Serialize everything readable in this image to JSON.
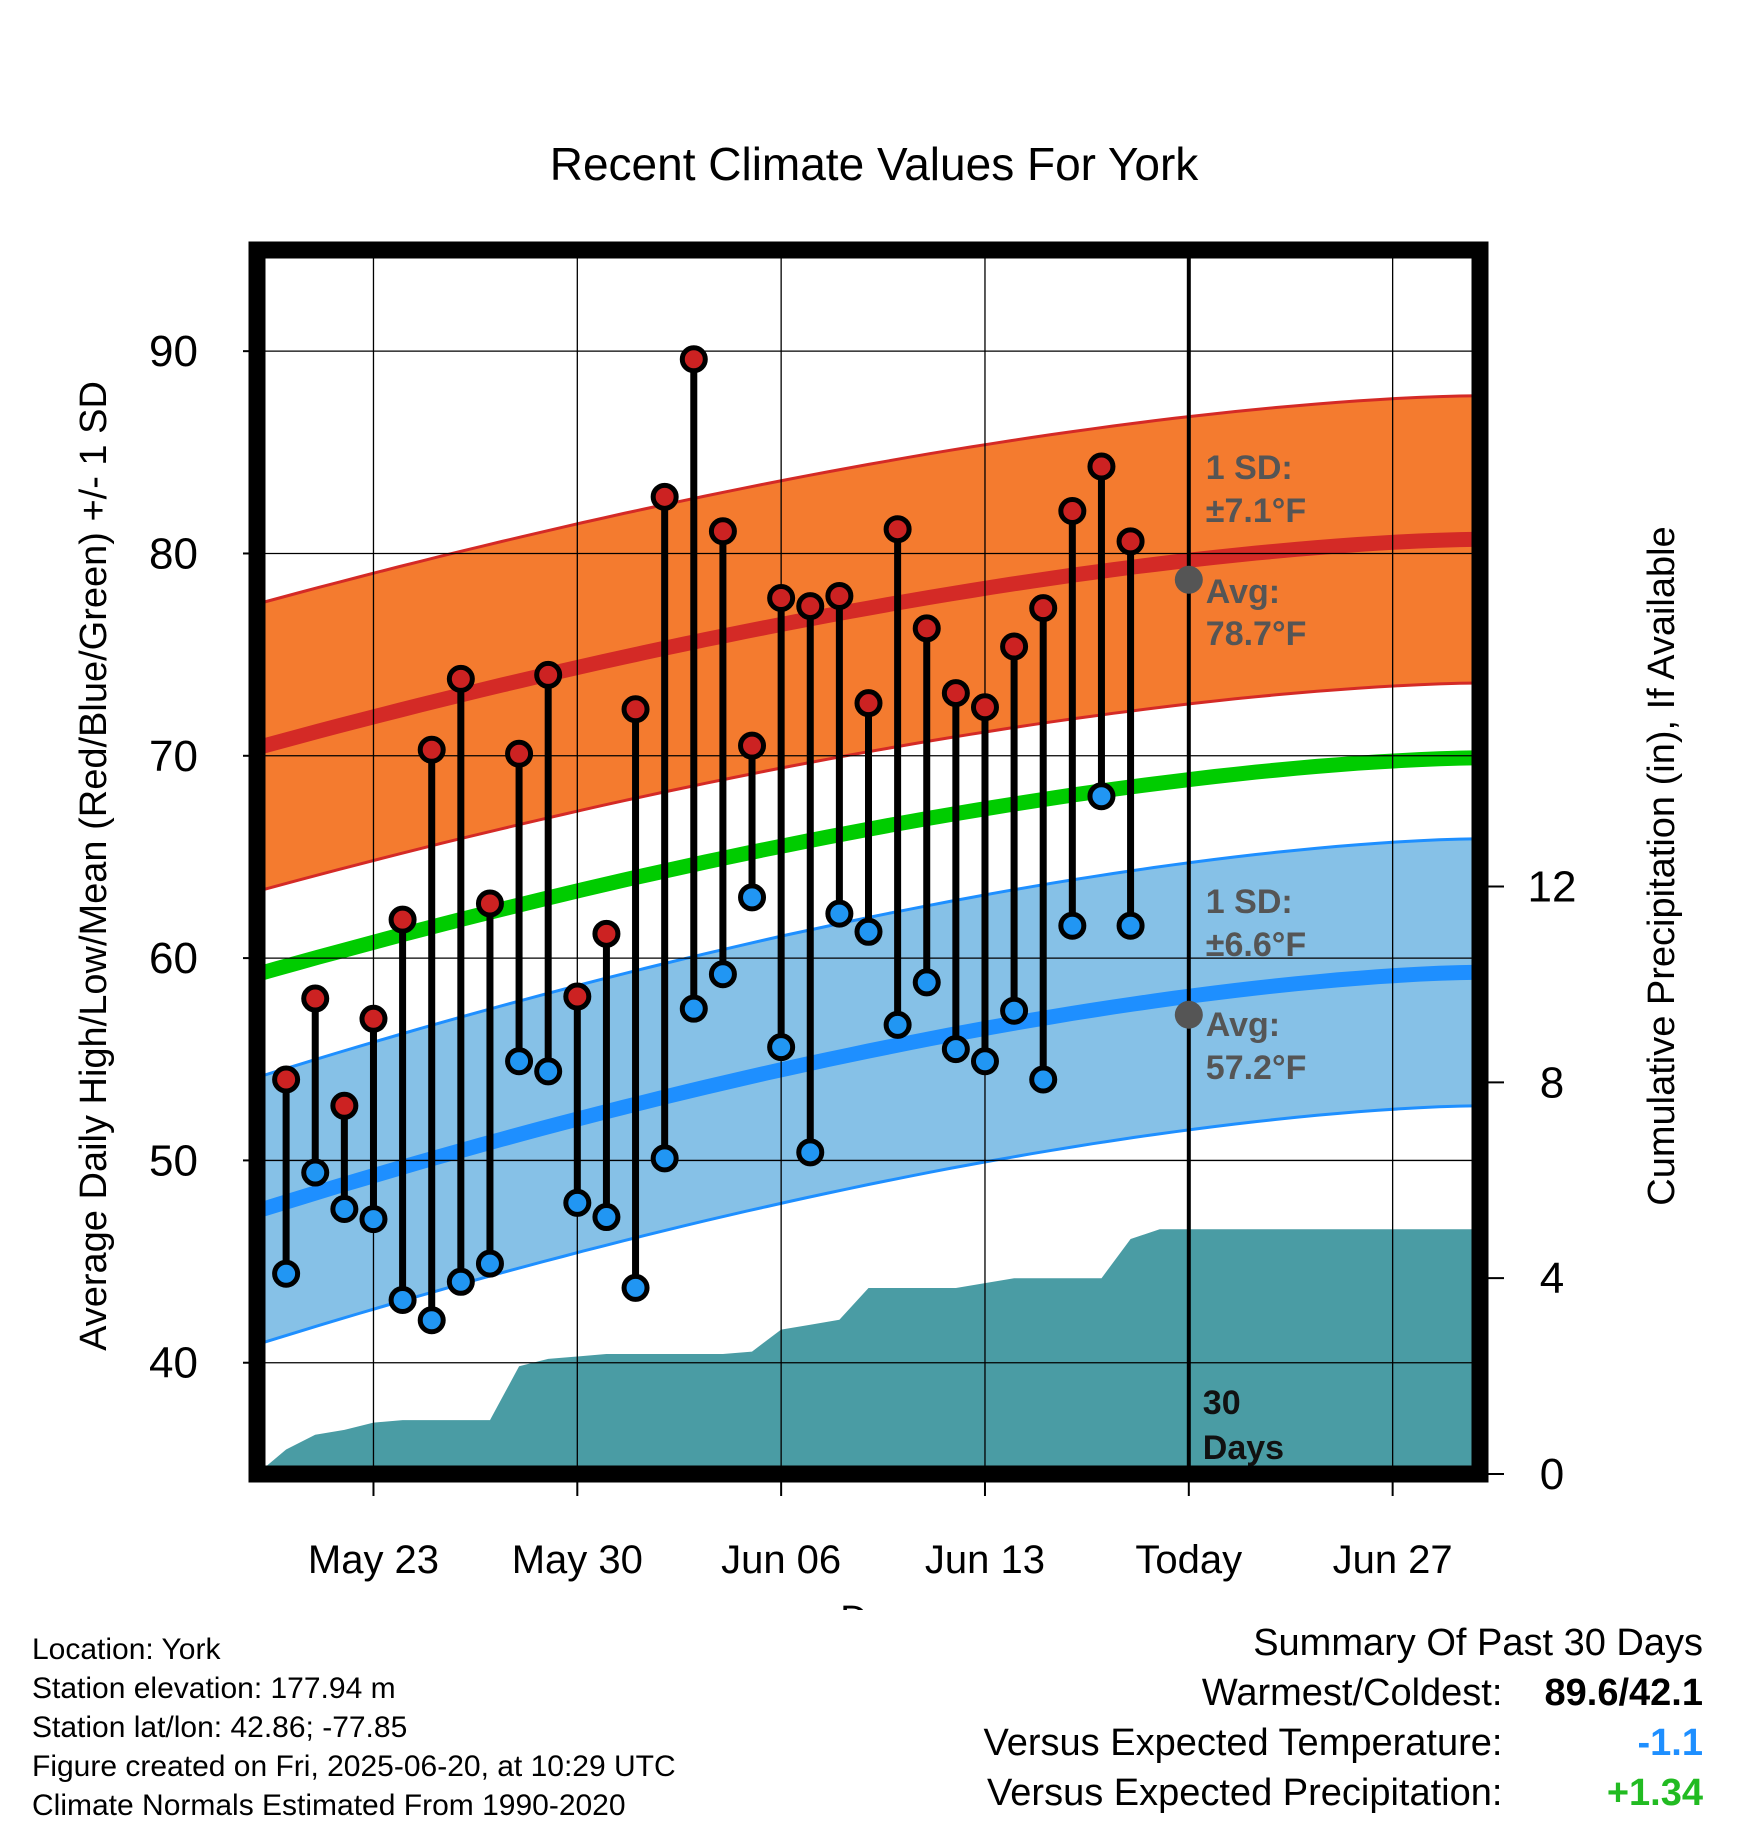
{
  "chart_data": {
    "type": "line",
    "title": "Recent Climate Values For York",
    "xlabel": "Day",
    "ylabel": "Average Daily High/Low/Mean (Red/Blue/Green) +/- 1 SD",
    "y2label": "Cumulative Precipitation (in), If Available",
    "ylim": [
      34.5,
      95
    ],
    "y2lim": [
      0,
      25
    ],
    "xlim": [
      "2025-05-19",
      "2025-06-30"
    ],
    "yticks": [
      "40",
      "50",
      "60",
      "70",
      "80",
      "90"
    ],
    "y2ticks": [
      "0",
      "4",
      "8",
      "12"
    ],
    "xticks": [
      {
        "date": "2025-05-23",
        "label": "May 23"
      },
      {
        "date": "2025-05-30",
        "label": "May 30"
      },
      {
        "date": "2025-06-06",
        "label": "Jun 06"
      },
      {
        "date": "2025-06-13",
        "label": "Jun 13"
      },
      {
        "date": "2025-06-20",
        "label": "Today"
      },
      {
        "date": "2025-06-27",
        "label": "Jun 27"
      }
    ],
    "grid": true,
    "dates": [
      "2025-05-20",
      "2025-05-21",
      "2025-05-22",
      "2025-05-23",
      "2025-05-24",
      "2025-05-25",
      "2025-05-26",
      "2025-05-27",
      "2025-05-28",
      "2025-05-29",
      "2025-05-30",
      "2025-05-31",
      "2025-06-01",
      "2025-06-02",
      "2025-06-03",
      "2025-06-04",
      "2025-06-05",
      "2025-06-06",
      "2025-06-07",
      "2025-06-08",
      "2025-06-09",
      "2025-06-10",
      "2025-06-11",
      "2025-06-12",
      "2025-06-13",
      "2025-06-14",
      "2025-06-15",
      "2025-06-16",
      "2025-06-17",
      "2025-06-18",
      "2025-06-19"
    ],
    "daily_high": [
      54.0,
      58.0,
      52.7,
      57.0,
      61.9,
      70.3,
      73.8,
      62.7,
      70.1,
      74.0,
      58.1,
      61.2,
      72.3,
      82.8,
      89.6,
      81.1,
      70.5,
      77.8,
      77.4,
      77.9,
      72.6,
      81.2,
      76.3,
      73.1,
      72.4,
      75.4,
      77.3,
      82.1,
      84.3,
      80.6,
      null
    ],
    "daily_low": [
      44.4,
      49.4,
      47.6,
      47.1,
      43.1,
      42.1,
      44.0,
      44.9,
      54.9,
      54.4,
      47.9,
      47.2,
      43.7,
      50.1,
      57.5,
      59.2,
      63.0,
      55.6,
      50.4,
      62.2,
      61.3,
      56.7,
      58.8,
      55.5,
      54.9,
      57.4,
      54.0,
      61.6,
      68.0,
      61.6,
      null
    ],
    "normal_high": {
      "name": "Avg",
      "start": 70.4,
      "today": 78.7,
      "end": 80.7
    },
    "normal_low": {
      "name": "Avg",
      "start": 47.5,
      "today": 57.2,
      "end": 59.3
    },
    "normal_mean": {
      "start": 59.2,
      "end": 69.9
    },
    "sd_high": 7.1,
    "sd_low": 6.6,
    "cumulative_precip_dates": [
      "2025-05-19",
      "2025-05-20",
      "2025-05-21",
      "2025-05-22",
      "2025-05-23",
      "2025-05-24",
      "2025-05-25",
      "2025-05-26",
      "2025-05-27",
      "2025-05-28",
      "2025-05-29",
      "2025-05-30",
      "2025-05-31",
      "2025-06-01",
      "2025-06-02",
      "2025-06-03",
      "2025-06-04",
      "2025-06-05",
      "2025-06-06",
      "2025-06-07",
      "2025-06-08",
      "2025-06-09",
      "2025-06-10",
      "2025-06-11",
      "2025-06-12",
      "2025-06-13",
      "2025-06-14",
      "2025-06-15",
      "2025-06-16",
      "2025-06-17",
      "2025-06-18",
      "2025-06-19",
      "2025-06-20",
      "2025-06-30"
    ],
    "cumulative_precip": [
      0.0,
      0.5,
      0.8,
      0.9,
      1.05,
      1.1,
      1.1,
      1.1,
      1.1,
      2.2,
      2.35,
      2.4,
      2.45,
      2.45,
      2.45,
      2.45,
      2.45,
      2.5,
      2.95,
      3.05,
      3.15,
      3.8,
      3.8,
      3.8,
      3.8,
      3.9,
      4.0,
      4.0,
      4.0,
      4.0,
      4.8,
      5.0,
      5.0,
      5.0
    ],
    "today_line_label": "30 Days",
    "annotations": {
      "high_sd": {
        "line1": "1 SD:",
        "line2": "±7.1°F"
      },
      "high_avg": {
        "line1": "Avg:",
        "line2": "78.7°F"
      },
      "low_sd": {
        "line1": "1 SD:",
        "line2": "±6.6°F"
      },
      "low_avg": {
        "line1": "Avg:",
        "line2": "57.2°F"
      },
      "days_line1": "30",
      "days_line2": "Days"
    },
    "colors": {
      "high_band": "#f47b2f",
      "high_line": "#d42a26",
      "low_band": "#86c1e7",
      "low_line": "#1e8fff",
      "mean_line": "#00cc00",
      "precip": "#4a9ca4",
      "high_marker": "#cc2222",
      "low_marker": "#2196f3",
      "annotation": "#555555"
    }
  },
  "info": {
    "location": "Location: York",
    "elevation": "Station elevation: 177.94 m",
    "latlon": "Station lat/lon: 42.86; -77.85",
    "created": "Figure created on Fri, 2025-06-20, at 10:29 UTC",
    "normals": "Climate Normals Estimated From 1990-2020"
  },
  "summary": {
    "title": "Summary Of Past 30 Days",
    "warm_cold_label": "Warmest/Coldest:",
    "warm_cold_value": "89.6/42.1",
    "temp_label": "Versus Expected Temperature:",
    "temp_value": "-1.1",
    "temp_color": "#1e8fff",
    "precip_label": "Versus Expected Precipitation:",
    "precip_value": "+1.34",
    "precip_color": "#22bb22"
  }
}
